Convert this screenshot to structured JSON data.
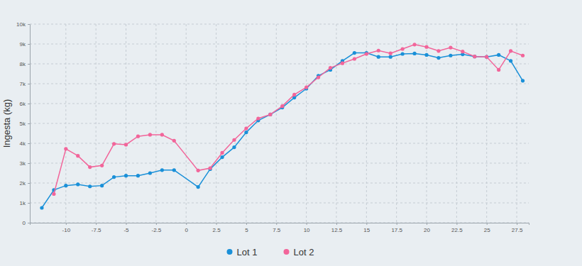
{
  "chart_data": {
    "type": "line",
    "y_label": "Ingesta (kg)",
    "x": [
      -12,
      -11,
      -10,
      -9,
      -8,
      -7,
      -6,
      -5,
      -4,
      -3,
      -2,
      -1,
      1,
      2,
      3,
      4,
      5,
      6,
      7,
      8,
      9,
      10,
      11,
      12,
      13,
      14,
      15,
      16,
      17,
      18,
      19,
      20,
      21,
      22,
      23,
      24,
      25,
      26,
      27,
      28
    ],
    "series": [
      {
        "name": "Lot 1",
        "color": "#1a90d8",
        "marker": "circle",
        "line_style": "solid",
        "values": [
          750,
          1650,
          1870,
          1930,
          1830,
          1870,
          2300,
          2370,
          2370,
          2500,
          2650,
          2650,
          1800,
          2700,
          3300,
          3800,
          4550,
          5150,
          5450,
          5800,
          6300,
          6750,
          7400,
          7700,
          8150,
          8550,
          8550,
          8350,
          8350,
          8500,
          8520,
          8450,
          8300,
          8420,
          8480,
          8370,
          8350,
          8450,
          8150,
          7150
        ]
      },
      {
        "name": "Lot 2",
        "color": "#f2659a",
        "marker": "circle",
        "line_style": "solid",
        "values": [
          null,
          1450,
          3720,
          3370,
          2800,
          2880,
          3970,
          3930,
          4350,
          4430,
          4430,
          4130,
          2630,
          2750,
          3520,
          4170,
          4750,
          5250,
          5450,
          5870,
          6450,
          6820,
          7320,
          7800,
          8030,
          8250,
          8500,
          8670,
          8530,
          8750,
          8970,
          8850,
          8650,
          8820,
          8620,
          8370,
          8350,
          7700,
          8650,
          8420
        ]
      }
    ],
    "xlim": [
      -13,
      28.5
    ],
    "xticks": [
      -10,
      -7.5,
      -5,
      -2.5,
      0,
      2.5,
      5,
      7.5,
      10,
      12.5,
      15,
      17.5,
      20,
      22.5,
      25,
      27.5
    ],
    "ylim": [
      0,
      10000
    ],
    "yticks": [
      0,
      {
        "value": 1000,
        "label": "1k"
      },
      {
        "value": 2000,
        "label": "2k"
      },
      {
        "value": 3000,
        "label": "3k"
      },
      {
        "value": 4000,
        "label": "4k"
      },
      {
        "value": 5000,
        "label": "5k"
      },
      {
        "value": 6000,
        "label": "6k"
      },
      {
        "value": 7000,
        "label": "7k"
      },
      {
        "value": 8000,
        "label": "8k"
      },
      {
        "value": 9000,
        "label": "9k"
      },
      {
        "value": 10000,
        "label": "10k"
      }
    ],
    "grid": true,
    "legend": "bottom"
  }
}
